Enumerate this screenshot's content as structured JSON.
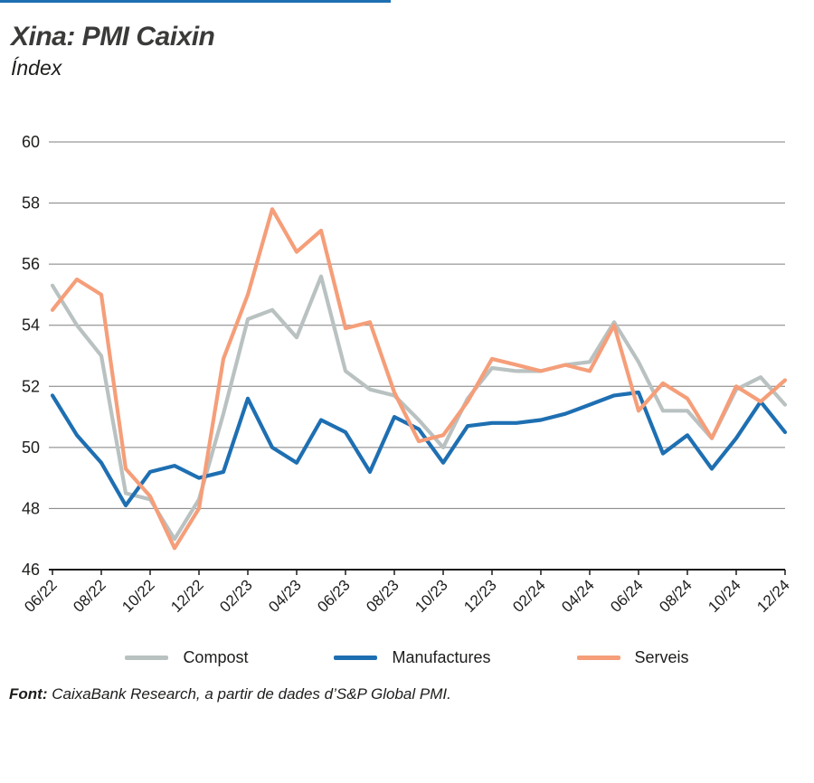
{
  "page": {
    "title": "Xina: PMI Caixin",
    "subtitle": "Índex",
    "source_label": "Font:",
    "source_text": " CaixaBank Research, a partir de dades d’S&P Global PMI.",
    "accent_rule_color": "#1e6fb2"
  },
  "chart_data": {
    "type": "line",
    "title": "Xina: PMI Caixin",
    "ylabel": "Índex",
    "ylim": [
      46,
      60
    ],
    "yticks": [
      46,
      48,
      50,
      52,
      54,
      56,
      58,
      60
    ],
    "grid": true,
    "grid_color": "#7f7f7f",
    "axis_color": "#1a1a1a",
    "legend_position": "bottom",
    "points_per_series": 31,
    "x_labels": [
      "06/22",
      "08/22",
      "10/22",
      "12/22",
      "02/23",
      "04/23",
      "06/23",
      "08/23",
      "10/23",
      "12/23",
      "02/24",
      "04/24",
      "06/24",
      "08/24",
      "10/24",
      "12/24"
    ],
    "x_label_point_indices": [
      0,
      2,
      4,
      6,
      8,
      10,
      12,
      14,
      16,
      18,
      20,
      22,
      24,
      26,
      28,
      30
    ],
    "series": [
      {
        "name": "Compost",
        "color": "#b9c1c1",
        "values": [
          55.3,
          54.0,
          53.0,
          48.5,
          48.3,
          47.0,
          48.3,
          51.1,
          54.2,
          54.5,
          53.6,
          55.6,
          52.5,
          51.9,
          51.7,
          50.9,
          50.0,
          51.6,
          52.6,
          52.5,
          52.5,
          52.7,
          52.8,
          54.1,
          52.8,
          51.2,
          51.2,
          50.3,
          51.9,
          52.3,
          51.4
        ]
      },
      {
        "name": "Manufactures",
        "color": "#1e6fb2",
        "values": [
          51.7,
          50.4,
          49.5,
          48.1,
          49.2,
          49.4,
          49.0,
          49.2,
          51.6,
          50.0,
          49.5,
          50.9,
          50.5,
          49.2,
          51.0,
          50.6,
          49.5,
          50.7,
          50.8,
          50.8,
          50.9,
          51.1,
          51.4,
          51.7,
          51.8,
          49.8,
          50.4,
          49.3,
          50.3,
          51.5,
          50.5
        ]
      },
      {
        "name": "Serveis",
        "color": "#f59e79",
        "values": [
          54.5,
          55.5,
          55.0,
          49.3,
          48.4,
          46.7,
          48.0,
          52.9,
          55.0,
          57.8,
          56.4,
          57.1,
          53.9,
          54.1,
          51.8,
          50.2,
          50.4,
          51.5,
          52.9,
          52.7,
          52.5,
          52.7,
          52.5,
          54.0,
          51.2,
          52.1,
          51.6,
          50.3,
          52.0,
          51.5,
          52.2
        ]
      }
    ]
  }
}
